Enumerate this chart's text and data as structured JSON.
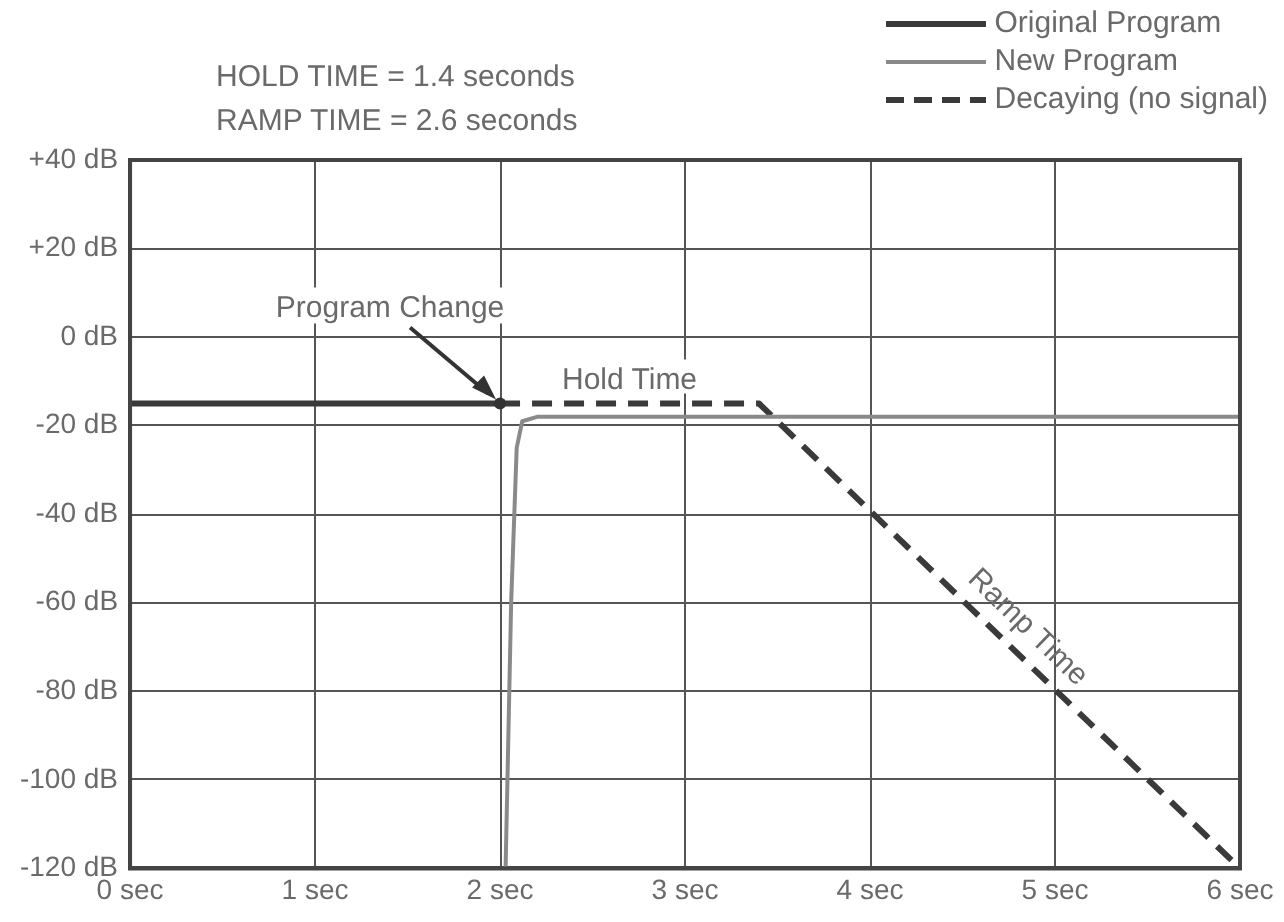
{
  "chart_data": {
    "type": "line",
    "series": [
      {
        "name": "Original Program",
        "color": "#3a3a3a",
        "x": [
          0,
          2
        ],
        "values": [
          -15,
          -15
        ],
        "line_style": "solid"
      },
      {
        "name": "New Program",
        "color": "#8a8a8a",
        "x": [
          2.03,
          2.06,
          2.09,
          2.12,
          2.2,
          6
        ],
        "values": [
          -120,
          -60,
          -25,
          -19,
          -18,
          -18
        ],
        "line_style": "solid"
      },
      {
        "name": "Decaying (no signal)",
        "color": "#3a3a3a",
        "x": [
          2,
          3.4,
          6
        ],
        "values": [
          -15,
          -15,
          -120
        ],
        "line_style": "dashed"
      }
    ],
    "xlim": [
      0,
      6
    ],
    "xticks": [
      {
        "value": 0,
        "label": "0 sec"
      },
      {
        "value": 1,
        "label": "1 sec"
      },
      {
        "value": 2,
        "label": "2 sec"
      },
      {
        "value": 3,
        "label": "3 sec"
      },
      {
        "value": 4,
        "label": "4 sec"
      },
      {
        "value": 5,
        "label": "5 sec"
      },
      {
        "value": 6,
        "label": "6 sec"
      }
    ],
    "ylim": [
      -120,
      40
    ],
    "yticks": [
      {
        "value": 40,
        "label": "+40 dB"
      },
      {
        "value": 20,
        "label": "+20 dB"
      },
      {
        "value": 0,
        "label": "0 dB"
      },
      {
        "value": -20,
        "label": "-20 dB"
      },
      {
        "value": -40,
        "label": "-40 dB"
      },
      {
        "value": -60,
        "label": "-60 dB"
      },
      {
        "value": -80,
        "label": "-80 dB"
      },
      {
        "value": -100,
        "label": "-100 dB"
      },
      {
        "value": -120,
        "label": "-120 dB"
      }
    ],
    "grid": true,
    "legend": "top right",
    "annotations": [
      "HOLD TIME = 1.4 seconds",
      "RAMP TIME = 2.6 seconds",
      {
        "text": "Program Change",
        "x": 2,
        "y": -15
      },
      {
        "text": "Hold Time",
        "x": 2.7,
        "y": -15
      },
      {
        "text": "Ramp Time",
        "x": 4.75,
        "y": -70
      }
    ]
  }
}
